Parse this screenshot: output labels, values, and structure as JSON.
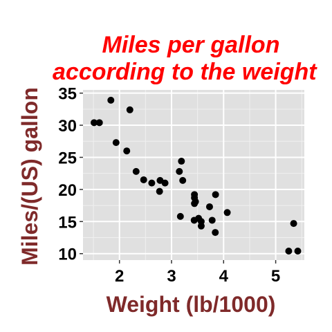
{
  "chart_data": {
    "type": "scatter",
    "title": [
      "Miles per gallon",
      "according to the weight"
    ],
    "xlabel": "Weight (lb/1000)",
    "ylabel": "Miles/(US) gallon",
    "xlim": [
      1.3,
      5.55
    ],
    "ylim": [
      9.0,
      35.5
    ],
    "xticks": [
      2,
      3,
      4,
      5
    ],
    "yticks": [
      10,
      15,
      20,
      25,
      30,
      35
    ],
    "grid": true,
    "legend": "none",
    "colors": {
      "title": "#ff0000",
      "axis_title": "#7f2a2a",
      "panel": "#e0e0e0",
      "grid_major": "#ffffff",
      "grid_minor": "#f0f0f0",
      "point": "#000000"
    },
    "points": [
      {
        "x": 2.62,
        "y": 21.0
      },
      {
        "x": 2.875,
        "y": 21.0
      },
      {
        "x": 2.32,
        "y": 22.8
      },
      {
        "x": 3.215,
        "y": 21.4
      },
      {
        "x": 3.44,
        "y": 18.7
      },
      {
        "x": 3.46,
        "y": 18.1
      },
      {
        "x": 3.57,
        "y": 14.3
      },
      {
        "x": 3.19,
        "y": 24.4
      },
      {
        "x": 3.15,
        "y": 22.8
      },
      {
        "x": 3.44,
        "y": 19.2
      },
      {
        "x": 3.44,
        "y": 17.8
      },
      {
        "x": 4.07,
        "y": 16.4
      },
      {
        "x": 3.73,
        "y": 17.3
      },
      {
        "x": 3.78,
        "y": 15.2
      },
      {
        "x": 5.25,
        "y": 10.4
      },
      {
        "x": 5.424,
        "y": 10.4
      },
      {
        "x": 5.345,
        "y": 14.7
      },
      {
        "x": 2.2,
        "y": 32.4
      },
      {
        "x": 1.615,
        "y": 30.4
      },
      {
        "x": 1.835,
        "y": 33.9
      },
      {
        "x": 2.465,
        "y": 21.5
      },
      {
        "x": 3.52,
        "y": 15.5
      },
      {
        "x": 3.435,
        "y": 15.2
      },
      {
        "x": 3.84,
        "y": 13.3
      },
      {
        "x": 3.845,
        "y": 19.2
      },
      {
        "x": 1.935,
        "y": 27.3
      },
      {
        "x": 2.14,
        "y": 26.0
      },
      {
        "x": 1.513,
        "y": 30.4
      },
      {
        "x": 3.17,
        "y": 15.8
      },
      {
        "x": 2.77,
        "y": 19.7
      },
      {
        "x": 3.57,
        "y": 15.0
      },
      {
        "x": 2.78,
        "y": 21.4
      }
    ]
  }
}
